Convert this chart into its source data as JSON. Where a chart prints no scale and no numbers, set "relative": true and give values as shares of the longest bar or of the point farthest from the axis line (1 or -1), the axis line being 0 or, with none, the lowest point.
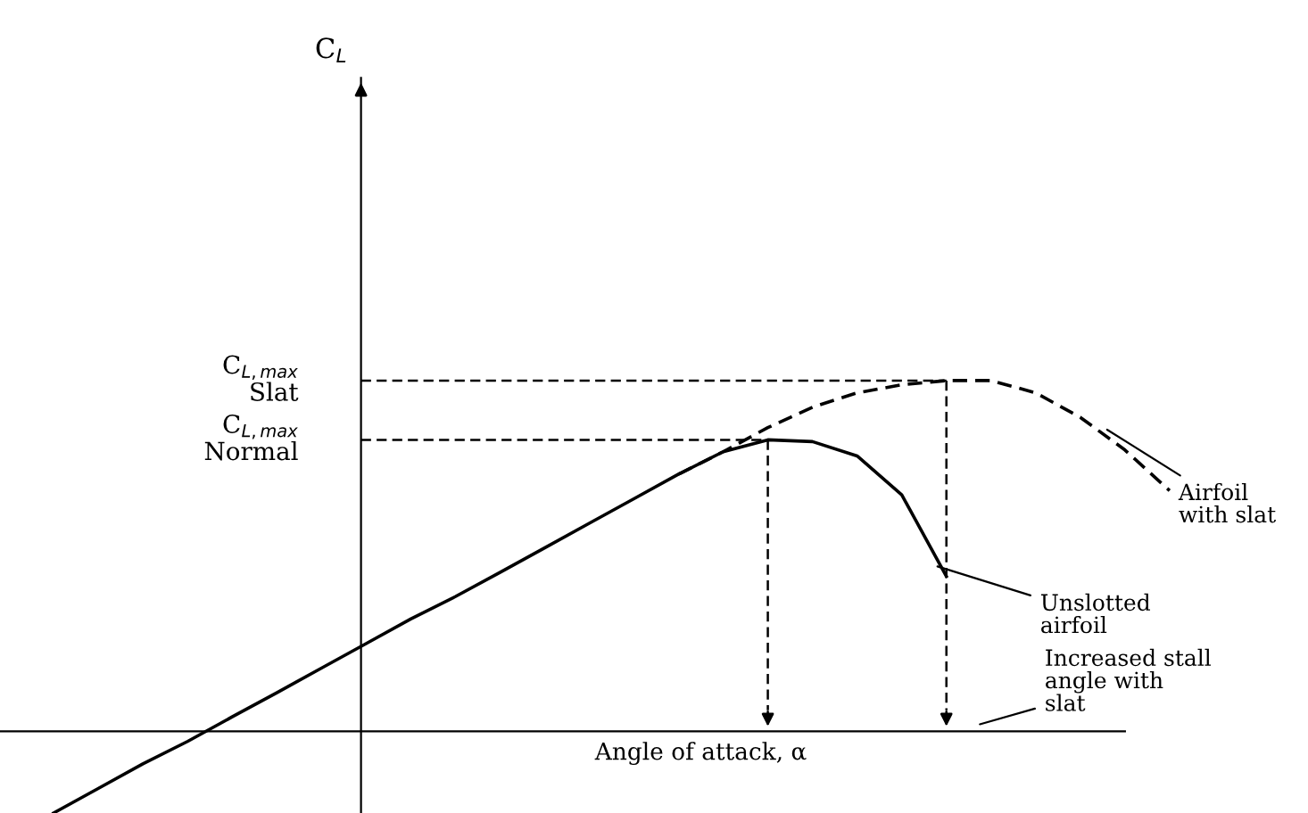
{
  "chart_data": {
    "type": "line",
    "relative": true,
    "xlabel": "Angle of attack, α",
    "categories": [
      null,
      null,
      null,
      null,
      null,
      null,
      null,
      null,
      null,
      null,
      null,
      null,
      null,
      null,
      null,
      null,
      null,
      null,
      null,
      null,
      null,
      null,
      null,
      null,
      null,
      null
    ],
    "series": [
      {
        "color": "#000000",
        "line_style": "solid",
        "values": [
          -0.233,
          -0.163,
          -0.093,
          -0.029,
          0.041,
          0.11,
          0.18,
          0.25,
          0.32,
          0.384,
          0.453,
          0.523,
          0.593,
          0.663,
          0.733,
          0.797,
          0.831,
          0.826,
          0.785,
          0.674,
          0.442,
          null,
          null,
          null,
          null,
          null
        ]
      },
      {
        "color": "#000000",
        "line_style": "dashed",
        "values": [
          null,
          null,
          null,
          null,
          null,
          null,
          null,
          null,
          null,
          null,
          null,
          null,
          null,
          null,
          0.733,
          0.797,
          0.866,
          0.924,
          0.965,
          0.988,
          1.0,
          1.0,
          0.965,
          0.895,
          0.802,
          0.686
        ]
      }
    ],
    "ref_lines": [
      {
        "axis": "y",
        "value": 1.0,
        "label": "C$_{L,max}$\nSlat",
        "line_style": "dashed"
      },
      {
        "axis": "y",
        "value": 0.831,
        "label": "C$_{L,max}$\nNormal",
        "line_style": "dashed"
      }
    ],
    "annotations": [
      "C$_{L}$",
      "Airfoil\nwith slat",
      "Unslotted\nairfoil",
      "Increased stall\nangle with\nslat"
    ],
    "legend": false,
    "grid": false
  }
}
